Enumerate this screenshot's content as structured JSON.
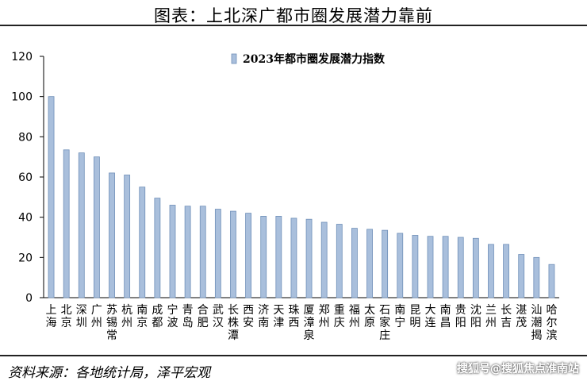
{
  "header": {
    "title": "图表：上北深广都市圈发展潜力靠前"
  },
  "footer": {
    "source": "资料来源：各地统计局，泽平宏观",
    "watermark": "搜狐号@搜狐焦点淮南站"
  },
  "colors": {
    "bar": "#a9bfdc",
    "bar_edge": "#6f8fb8",
    "axis": "#000000"
  },
  "chart_data": {
    "type": "bar",
    "title": "",
    "xlabel": "",
    "ylabel": "",
    "ylim": [
      0,
      120
    ],
    "yticks": [
      0,
      20,
      40,
      60,
      80,
      100,
      120
    ],
    "grid": false,
    "legend": {
      "position": "top",
      "entries": [
        "2023年都市圈发展潜力指数"
      ]
    },
    "categories": [
      "上海",
      "北京",
      "深圳",
      "广州",
      "苏锡常",
      "杭州",
      "南京",
      "成都",
      "宁波",
      "青岛",
      "合肥",
      "武汉",
      "长株潭",
      "西安",
      "济南",
      "天津",
      "珠西",
      "厦漳泉",
      "郑州",
      "重庆",
      "福州",
      "太原",
      "石家庄",
      "南宁",
      "昆明",
      "大连",
      "南昌",
      "贵阳",
      "沈阳",
      "兰州",
      "长吉",
      "湛茂",
      "汕潮揭",
      "哈尔滨"
    ],
    "series": [
      {
        "name": "2023年都市圈发展潜力指数",
        "values": [
          100,
          73.5,
          72,
          70,
          62,
          61,
          55,
          49.5,
          46,
          45.5,
          45.5,
          44,
          43,
          42,
          40.5,
          40.5,
          39.5,
          39,
          37.5,
          36.5,
          34.5,
          34,
          33.5,
          32,
          31,
          30.5,
          30.5,
          30,
          29.5,
          26.5,
          26.5,
          21.5,
          20,
          16.5
        ]
      }
    ]
  }
}
